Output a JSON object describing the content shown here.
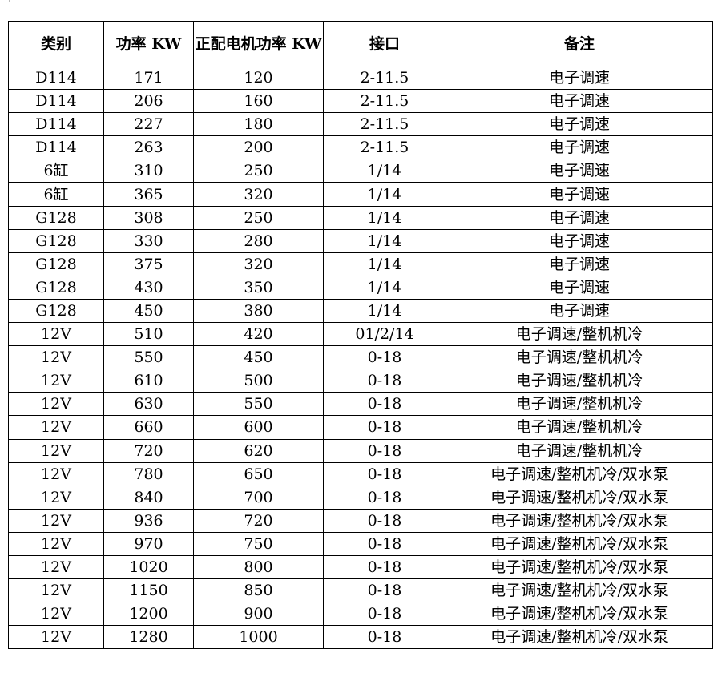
{
  "headers": [
    "类别",
    "功率 KW",
    "正配电机功率 KW",
    "接口",
    "备注"
  ],
  "rows": [
    [
      "D114",
      "171",
      "120",
      "2-11.5",
      "电子调速"
    ],
    [
      "D114",
      "206",
      "160",
      "2-11.5",
      "电子调速"
    ],
    [
      "D114",
      "227",
      "180",
      "2-11.5",
      "电子调速"
    ],
    [
      "D114",
      "263",
      "200",
      "2-11.5",
      "电子调速"
    ],
    [
      "6缸",
      "310",
      "250",
      "1/14",
      "电子调速"
    ],
    [
      "6缸",
      "365",
      "320",
      "1/14",
      "电子调速"
    ],
    [
      "G128",
      "308",
      "250",
      "1/14",
      "电子调速"
    ],
    [
      "G128",
      "330",
      "280",
      "1/14",
      "电子调速"
    ],
    [
      "G128",
      "375",
      "320",
      "1/14",
      "电子调速"
    ],
    [
      "G128",
      "430",
      "350",
      "1/14",
      "电子调速"
    ],
    [
      "G128",
      "450",
      "380",
      "1/14",
      "电子调速"
    ],
    [
      "12V",
      "510",
      "420",
      "01/2/14",
      "电子调速/整机机冷"
    ],
    [
      "12V",
      "550",
      "450",
      "0-18",
      "电子调速/整机机冷"
    ],
    [
      "12V",
      "610",
      "500",
      "0-18",
      "电子调速/整机机冷"
    ],
    [
      "12V",
      "630",
      "550",
      "0-18",
      "电子调速/整机机冷"
    ],
    [
      "12V",
      "660",
      "600",
      "0-18",
      "电子调速/整机机冷"
    ],
    [
      "12V",
      "720",
      "620",
      "0-18",
      "电子调速/整机机冷"
    ],
    [
      "12V",
      "780",
      "650",
      "0-18",
      "电子调速/整机机冷/双水泵"
    ],
    [
      "12V",
      "840",
      "700",
      "0-18",
      "电子调速/整机机冷/双水泵"
    ],
    [
      "12V",
      "936",
      "720",
      "0-18",
      "电子调速/整机机冷/双水泵"
    ],
    [
      "12V",
      "970",
      "750",
      "0-18",
      "电子调速/整机机冷/双水泵"
    ],
    [
      "12V",
      "1020",
      "800",
      "0-18",
      "电子调速/整机机冷/双水泵"
    ],
    [
      "12V",
      "1150",
      "850",
      "0-18",
      "电子调速/整机机冷/双水泵"
    ],
    [
      "12V",
      "1200",
      "900",
      "0-18",
      "电子调速/整机机冷/双水泵"
    ],
    [
      "12V",
      "1280",
      "1000",
      "0-18",
      "电子调速/整机机冷/双水泵"
    ]
  ]
}
